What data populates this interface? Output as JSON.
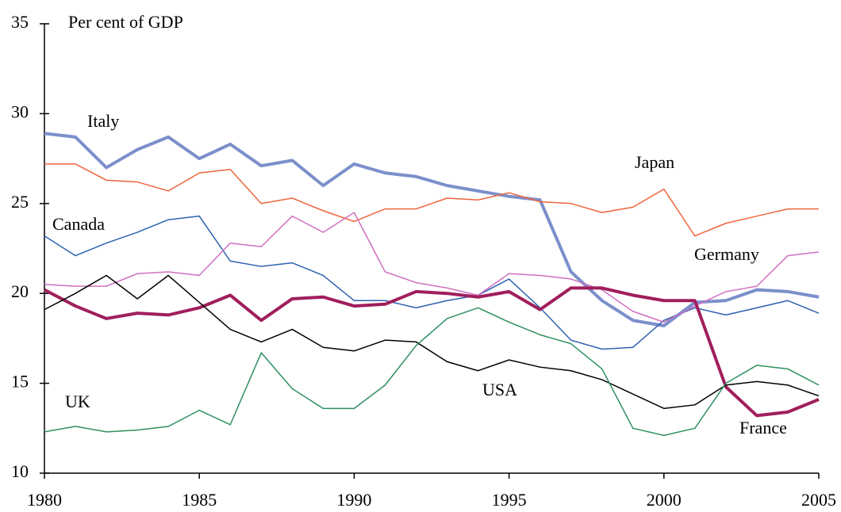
{
  "chart_data": {
    "type": "line",
    "ylabel": "Per cent of GDP",
    "x": [
      1980,
      1981,
      1982,
      1983,
      1984,
      1985,
      1986,
      1987,
      1988,
      1989,
      1990,
      1991,
      1992,
      1993,
      1994,
      1995,
      1996,
      1997,
      1998,
      1999,
      2000,
      2001,
      2002,
      2003,
      2004,
      2005
    ],
    "xlim": [
      1980,
      2005
    ],
    "xticks": [
      1980,
      1985,
      1990,
      1995,
      2000,
      2005
    ],
    "ylim": [
      10,
      35
    ],
    "yticks": [
      10,
      15,
      20,
      25,
      30,
      35
    ],
    "grid": false,
    "series": [
      {
        "name": "Italy",
        "color": "#7b8fcb",
        "linewidth": 4,
        "values": [
          28.9,
          28.7,
          27.0,
          28.0,
          28.7,
          27.5,
          28.3,
          27.1,
          27.4,
          26.0,
          27.2,
          26.7,
          26.5,
          26.0,
          25.7,
          25.4,
          25.2,
          21.2,
          19.6,
          18.5,
          18.2,
          19.5,
          19.6,
          20.2,
          20.1,
          19.8
        ]
      },
      {
        "name": "Japan",
        "color": "#f0643c",
        "linewidth": 1.5,
        "values": [
          27.2,
          27.2,
          26.3,
          26.2,
          25.7,
          26.7,
          26.9,
          25.0,
          25.3,
          24.6,
          24.0,
          24.7,
          24.7,
          25.3,
          25.2,
          25.6,
          25.1,
          25.0,
          24.5,
          24.8,
          25.8,
          23.2,
          23.9,
          24.3,
          24.7,
          24.7
        ]
      },
      {
        "name": "Canada",
        "color": "#2e62b0",
        "linewidth": 1.5,
        "values": [
          23.2,
          22.1,
          22.8,
          23.4,
          24.1,
          24.3,
          21.8,
          21.5,
          21.7,
          21.0,
          19.6,
          19.6,
          19.2,
          19.6,
          19.9,
          20.8,
          19.2,
          17.4,
          16.9,
          17.0,
          18.5,
          19.2,
          18.8,
          19.2,
          19.6,
          18.9
        ]
      },
      {
        "name": "Germany",
        "color": "#d070c0",
        "linewidth": 1.5,
        "values": [
          20.5,
          20.4,
          20.4,
          21.1,
          21.2,
          21.0,
          22.8,
          22.6,
          24.3,
          23.4,
          24.5,
          21.2,
          20.6,
          20.3,
          19.9,
          21.1,
          21.0,
          20.8,
          20.2,
          19.0,
          18.4,
          19.3,
          20.1,
          20.4,
          22.1,
          22.3
        ]
      },
      {
        "name": "France",
        "color": "#a01e5c",
        "linewidth": 4,
        "values": [
          20.2,
          19.3,
          18.6,
          18.9,
          18.8,
          19.2,
          19.9,
          18.5,
          19.7,
          19.8,
          19.3,
          19.4,
          20.1,
          20.0,
          19.8,
          20.1,
          19.1,
          20.3,
          20.3,
          19.9,
          19.6,
          19.6,
          14.8,
          13.2,
          13.4,
          14.1
        ]
      },
      {
        "name": "USA",
        "color": "#000000",
        "linewidth": 1.5,
        "values": [
          19.1,
          20.0,
          21.0,
          19.7,
          21.0,
          19.5,
          18.0,
          17.3,
          18.0,
          17.0,
          16.8,
          17.4,
          17.3,
          16.2,
          15.7,
          16.3,
          15.9,
          15.7,
          15.2,
          14.4,
          13.6,
          13.8,
          14.9,
          15.1,
          14.9,
          14.3
        ]
      },
      {
        "name": "UK",
        "color": "#2e9060",
        "linewidth": 1.5,
        "values": [
          12.3,
          12.6,
          12.3,
          12.4,
          12.6,
          13.5,
          12.7,
          16.7,
          14.7,
          13.6,
          13.6,
          14.9,
          17.1,
          18.6,
          19.2,
          18.4,
          17.7,
          17.2,
          15.8,
          12.5,
          12.1,
          12.5,
          15.0,
          16.0,
          15.8,
          14.9
        ]
      }
    ]
  }
}
